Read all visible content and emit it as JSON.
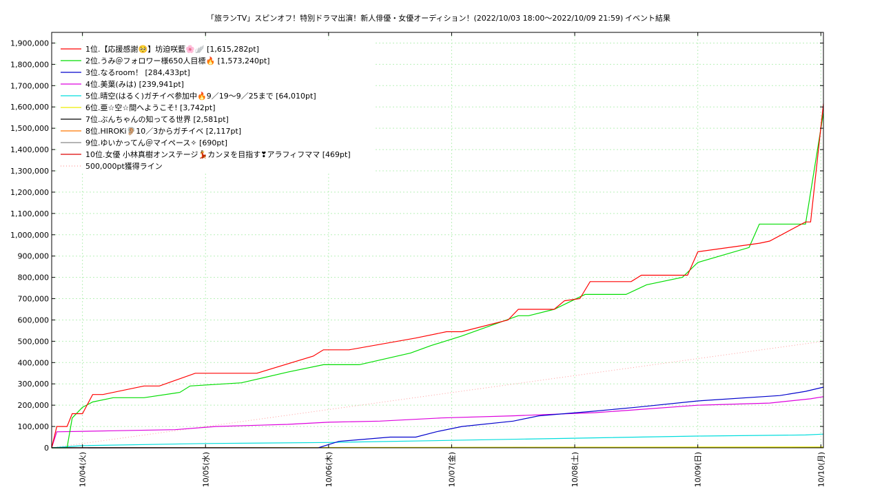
{
  "chart_data": {
    "type": "line",
    "title": "「旅ランTV」スピンオフ！特別ドラマ出演！新人俳優・女優オーディション！(2022/10/03 18:00〜2022/10/09 21:59)",
    "subtitle": "イベント結果",
    "xlabel": "",
    "ylabel": "",
    "x_range": [
      "2022-10-03T18:00",
      "2022-10-10T00:30"
    ],
    "ylim": [
      0,
      1950000
    ],
    "y_ticks": [
      0,
      100000,
      200000,
      300000,
      400000,
      500000,
      600000,
      700000,
      800000,
      900000,
      1000000,
      1100000,
      1200000,
      1300000,
      1400000,
      1500000,
      1600000,
      1700000,
      1800000,
      1900000
    ],
    "y_tick_labels": [
      "0",
      "100,000",
      "200,000",
      "300,000",
      "400,000",
      "500,000",
      "600,000",
      "700,000",
      "800,000",
      "900,000",
      "1,000,000",
      "1,100,000",
      "1,200,000",
      "1,300,000",
      "1,400,000",
      "1,500,000",
      "1,600,000",
      "1,700,000",
      "1,800,000",
      "1,900,000"
    ],
    "x_ticks": [
      "2022-10-04",
      "2022-10-05",
      "2022-10-06",
      "2022-10-07",
      "2022-10-08",
      "2022-10-09",
      "2022-10-10"
    ],
    "x_tick_labels": [
      "10/04(火)",
      "10/05(水)",
      "10/06(木)",
      "10/07(金)",
      "10/08(土)",
      "10/09(日)",
      "10/10(月)"
    ],
    "grid": true,
    "legend_position": "top-left",
    "series": [
      {
        "name": "1位.【応援感謝🥺】坊迫咲藍🌸🪽 [1,615,282pt]",
        "color": "#ff0000",
        "x": [
          "2022-10-03T18:00",
          "2022-10-03T18:30",
          "2022-10-03T19:00",
          "2022-10-03T21:00",
          "2022-10-03T22:00",
          "2022-10-04T00:00",
          "2022-10-04T02:00",
          "2022-10-04T04:00",
          "2022-10-04T12:00",
          "2022-10-04T15:00",
          "2022-10-04T22:00",
          "2022-10-05T03:00",
          "2022-10-05T10:00",
          "2022-10-05T21:00",
          "2022-10-05T23:00",
          "2022-10-06T04:00",
          "2022-10-06T17:00",
          "2022-10-06T23:00",
          "2022-10-07T02:00",
          "2022-10-07T11:00",
          "2022-10-07T13:00",
          "2022-10-07T20:00",
          "2022-10-07T22:00",
          "2022-10-08T01:00",
          "2022-10-08T03:00",
          "2022-10-08T11:00",
          "2022-10-08T13:00",
          "2022-10-08T22:00",
          "2022-10-09T00:00",
          "2022-10-09T12:00",
          "2022-10-09T14:00",
          "2022-10-09T21:00",
          "2022-10-09T22:00",
          "2022-10-10T00:30"
        ],
        "y": [
          0,
          50000,
          100000,
          100000,
          160000,
          160000,
          250000,
          250000,
          290000,
          290000,
          350000,
          350000,
          350000,
          430000,
          460000,
          460000,
          515000,
          545000,
          545000,
          600000,
          650000,
          650000,
          690000,
          700000,
          780000,
          780000,
          810000,
          810000,
          920000,
          960000,
          970000,
          1060000,
          1060000,
          1615282
        ]
      },
      {
        "name": "2位.うみ＠フォロワー様650人目標🔥 [1,573,240pt]",
        "color": "#00dd00",
        "x": [
          "2022-10-03T18:00",
          "2022-10-03T21:00",
          "2022-10-03T22:00",
          "2022-10-04T00:00",
          "2022-10-04T02:00",
          "2022-10-04T06:00",
          "2022-10-04T12:00",
          "2022-10-04T19:00",
          "2022-10-04T21:00",
          "2022-10-05T07:00",
          "2022-10-05T16:00",
          "2022-10-05T23:00",
          "2022-10-06T06:00",
          "2022-10-06T16:00",
          "2022-10-06T20:00",
          "2022-10-07T02:00",
          "2022-10-07T13:00",
          "2022-10-07T15:00",
          "2022-10-07T20:00",
          "2022-10-08T02:00",
          "2022-10-08T10:00",
          "2022-10-08T14:00",
          "2022-10-08T21:00",
          "2022-10-09T00:00",
          "2022-10-09T10:00",
          "2022-10-09T12:00",
          "2022-10-09T21:00",
          "2022-10-10T00:30"
        ],
        "y": [
          0,
          0,
          140000,
          190000,
          215000,
          235000,
          235000,
          260000,
          290000,
          305000,
          355000,
          390000,
          390000,
          445000,
          480000,
          525000,
          620000,
          620000,
          650000,
          720000,
          720000,
          765000,
          800000,
          870000,
          940000,
          1050000,
          1050000,
          1573240
        ]
      },
      {
        "name": "3位.なるroom！ [284,433pt]",
        "color": "#0000cc",
        "x": [
          "2022-10-03T18:00",
          "2022-10-05T22:00",
          "2022-10-06T02:00",
          "2022-10-06T12:00",
          "2022-10-06T17:00",
          "2022-10-06T21:00",
          "2022-10-07T02:00",
          "2022-10-07T12:00",
          "2022-10-07T17:00",
          "2022-10-08T03:00",
          "2022-10-08T12:00",
          "2022-10-09T00:00",
          "2022-10-09T16:00",
          "2022-10-09T21:00",
          "2022-10-10T00:30"
        ],
        "y": [
          0,
          0,
          30000,
          50000,
          50000,
          75000,
          100000,
          125000,
          150000,
          170000,
          190000,
          220000,
          245000,
          265000,
          284433
        ]
      },
      {
        "name": "4位.美葉(みは) [239,941pt]",
        "color": "#dd00dd",
        "x": [
          "2022-10-03T18:00",
          "2022-10-03T19:00",
          "2022-10-04T06:00",
          "2022-10-04T18:00",
          "2022-10-05T02:00",
          "2022-10-05T16:00",
          "2022-10-06T00:00",
          "2022-10-06T10:00",
          "2022-10-06T22:00",
          "2022-10-07T12:00",
          "2022-10-08T04:00",
          "2022-10-08T10:00",
          "2022-10-09T00:00",
          "2022-10-09T14:00",
          "2022-10-09T22:00",
          "2022-10-10T00:30"
        ],
        "y": [
          0,
          75000,
          80000,
          85000,
          100000,
          110000,
          120000,
          125000,
          140000,
          150000,
          165000,
          175000,
          200000,
          210000,
          230000,
          239941
        ]
      },
      {
        "name": "5位.晴空(はるく)ガチイベ参加中🔥9／19〜9／25まで [64,010pt]",
        "color": "#00dddd",
        "x": [
          "2022-10-03T18:00",
          "2022-10-04T00:00",
          "2022-10-05T00:00",
          "2022-10-06T00:00",
          "2022-10-07T00:00",
          "2022-10-08T00:00",
          "2022-10-09T00:00",
          "2022-10-09T21:00",
          "2022-10-10T00:30"
        ],
        "y": [
          0,
          10000,
          20000,
          25000,
          35000,
          45000,
          55000,
          60000,
          64010
        ]
      },
      {
        "name": "6位.亜☆空☆間へようこそ! [3,742pt]",
        "color": "#eeee00",
        "x": [
          "2022-10-03T18:00",
          "2022-10-10T00:30"
        ],
        "y": [
          0,
          3742
        ]
      },
      {
        "name": "7位.ぶんちゃんの知ってる世界 [2,581pt]",
        "color": "#000000",
        "x": [
          "2022-10-03T18:00",
          "2022-10-10T00:30"
        ],
        "y": [
          0,
          2581
        ]
      },
      {
        "name": "8位.HIROKi🦻🏼10／3からガチイベ [2,117pt]",
        "color": "#ff7700",
        "x": [
          "2022-10-03T18:00",
          "2022-10-10T00:30"
        ],
        "y": [
          0,
          2117
        ]
      },
      {
        "name": "9位.ゆいかってん＠マイペース✧ [690pt]",
        "color": "#888888",
        "x": [
          "2022-10-03T18:00",
          "2022-10-10T00:30"
        ],
        "y": [
          0,
          690
        ]
      },
      {
        "name": "10位.女優 小林真樹オンステージ💃カンヌを目指す❣アラフィフママ [469pt]",
        "color": "#dd0000",
        "x": [
          "2022-10-03T18:00",
          "2022-10-10T00:30"
        ],
        "y": [
          0,
          469
        ]
      }
    ],
    "reference_line": {
      "name": "500,000pt獲得ライン",
      "color": "#ff9999",
      "x": [
        "2022-10-03T18:00",
        "2022-10-10T00:30"
      ],
      "y": [
        0,
        500000
      ]
    }
  }
}
